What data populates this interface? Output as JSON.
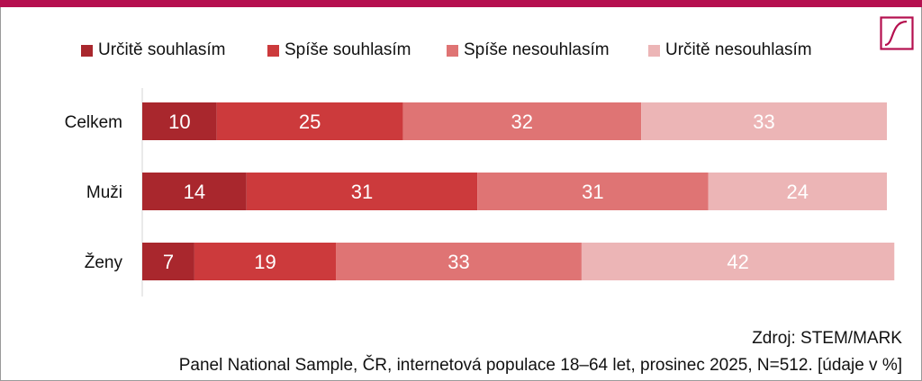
{
  "colors": {
    "accent": "#b5104f",
    "series": [
      "#a9272d",
      "#cc3a3c",
      "#df7474",
      "#ecb5b6"
    ]
  },
  "chart_data": {
    "type": "bar",
    "orientation": "horizontal",
    "stacked": true,
    "categories": [
      "Celkem",
      "Muži",
      "Ženy"
    ],
    "series": [
      {
        "name": "Určitě souhlasím",
        "values": [
          10,
          14,
          7
        ]
      },
      {
        "name": "Spíše souhlasím",
        "values": [
          25,
          31,
          19
        ]
      },
      {
        "name": "Spíše nesouhlasím",
        "values": [
          32,
          31,
          33
        ]
      },
      {
        "name": "Určitě nesouhlasím",
        "values": [
          33,
          24,
          42
        ]
      }
    ],
    "xlim": [
      0,
      100
    ],
    "legend_position": "top",
    "grid": false,
    "data_labels": true
  },
  "source": {
    "line1": "Zdroj: STEM/MARK",
    "line2": "Panel National Sample, ČR, internetová populace 18–64 let, prosinec 2025, N=512. [údaje v %]"
  }
}
